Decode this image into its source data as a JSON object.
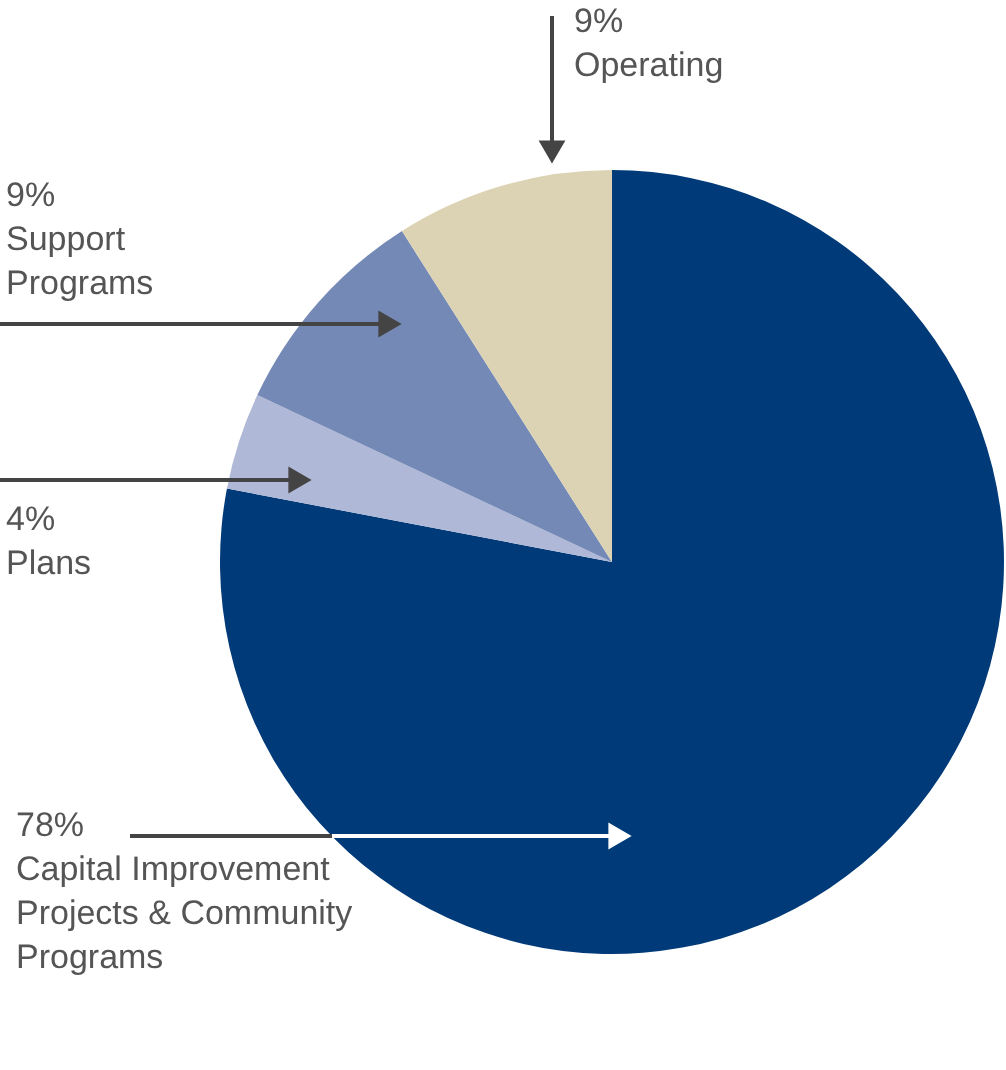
{
  "chart_data": {
    "type": "pie",
    "categories": [
      "Capital Improvement Projects & Community Programs",
      "Plans",
      "Support Programs",
      "Operating"
    ],
    "values": [
      78,
      4,
      9,
      9
    ],
    "value_labels": [
      "78%",
      "4%",
      "9%",
      "9%"
    ],
    "colors": [
      "#003a78",
      "#afb8d6",
      "#7489b5",
      "#dcd3b4"
    ]
  }
}
